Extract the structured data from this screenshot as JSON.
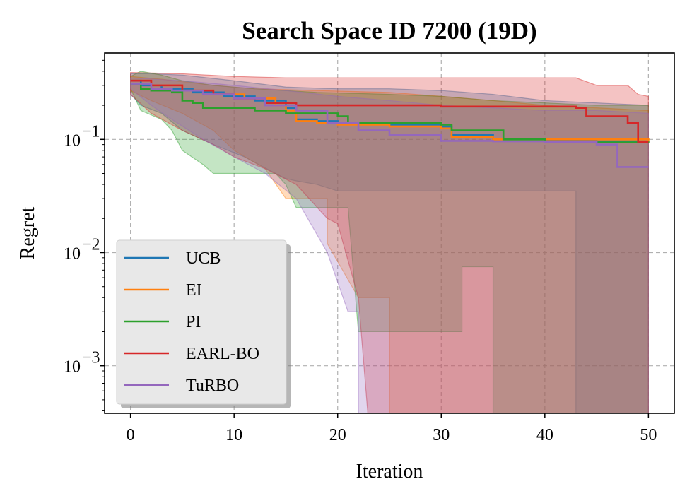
{
  "chart_data": {
    "type": "line",
    "title": "Search Space ID 7200 (19D)",
    "xlabel": "Iteration",
    "ylabel": "Regret",
    "xlim": [
      -2.5,
      52.5
    ],
    "ylim": [
      0.00038,
      0.58
    ],
    "yscale": "log",
    "xticks": [
      0,
      10,
      20,
      30,
      40,
      50
    ],
    "xtick_labels": [
      "0",
      "10",
      "20",
      "30",
      "40",
      "50"
    ],
    "yticks": [
      0.001,
      0.01,
      0.1
    ],
    "ytick_labels": [
      {
        "base": "10",
        "exp": "−3"
      },
      {
        "base": "10",
        "exp": "−2"
      },
      {
        "base": "10",
        "exp": "−1"
      }
    ],
    "grid": true,
    "legend": "lower-left",
    "series": [
      {
        "name": "UCB",
        "color": "#1f77b4",
        "mean": [
          [
            0,
            0.33
          ],
          [
            1,
            0.3
          ],
          [
            3,
            0.28
          ],
          [
            6,
            0.26
          ],
          [
            9,
            0.24
          ],
          [
            12,
            0.22
          ],
          [
            15,
            0.19
          ],
          [
            16,
            0.15
          ],
          [
            18,
            0.145
          ],
          [
            20,
            0.14
          ],
          [
            25,
            0.135
          ],
          [
            30,
            0.13
          ],
          [
            31,
            0.11
          ],
          [
            35,
            0.1
          ],
          [
            40,
            0.098
          ],
          [
            45,
            0.096
          ],
          [
            50,
            0.095
          ]
        ],
        "upper": [
          [
            0,
            0.38
          ],
          [
            2,
            0.38
          ],
          [
            5,
            0.37
          ],
          [
            10,
            0.33
          ],
          [
            15,
            0.29
          ],
          [
            20,
            0.28
          ],
          [
            25,
            0.28
          ],
          [
            30,
            0.27
          ],
          [
            35,
            0.25
          ],
          [
            40,
            0.22
          ],
          [
            45,
            0.21
          ],
          [
            50,
            0.2
          ]
        ],
        "lower": [
          [
            0,
            0.25
          ],
          [
            1,
            0.2
          ],
          [
            3,
            0.17
          ],
          [
            5,
            0.12
          ],
          [
            8,
            0.09
          ],
          [
            11,
            0.07
          ],
          [
            14,
            0.05
          ],
          [
            15,
            0.045
          ],
          [
            16,
            0.043
          ],
          [
            18,
            0.04
          ],
          [
            20,
            0.035
          ],
          [
            22,
            0.035
          ],
          [
            43,
            0.035
          ],
          [
            43,
            0.0003
          ],
          [
            50,
            0.0003
          ]
        ]
      },
      {
        "name": "EI",
        "color": "#ff7f0e",
        "mean": [
          [
            0,
            0.33
          ],
          [
            2,
            0.3
          ],
          [
            5,
            0.27
          ],
          [
            8,
            0.25
          ],
          [
            11,
            0.23
          ],
          [
            14,
            0.2
          ],
          [
            15,
            0.18
          ],
          [
            16,
            0.145
          ],
          [
            18,
            0.14
          ],
          [
            20,
            0.135
          ],
          [
            25,
            0.13
          ],
          [
            30,
            0.125
          ],
          [
            31,
            0.105
          ],
          [
            35,
            0.1
          ],
          [
            40,
            0.1
          ],
          [
            45,
            0.1
          ],
          [
            50,
            0.095
          ]
        ],
        "upper": [
          [
            0,
            0.36
          ],
          [
            3,
            0.34
          ],
          [
            8,
            0.3
          ],
          [
            12,
            0.28
          ],
          [
            18,
            0.27
          ],
          [
            25,
            0.26
          ],
          [
            30,
            0.24
          ],
          [
            35,
            0.22
          ],
          [
            40,
            0.2
          ],
          [
            45,
            0.19
          ],
          [
            50,
            0.18
          ]
        ],
        "lower": [
          [
            0,
            0.27
          ],
          [
            2,
            0.22
          ],
          [
            5,
            0.17
          ],
          [
            8,
            0.12
          ],
          [
            10,
            0.08
          ],
          [
            13,
            0.055
          ],
          [
            15,
            0.03
          ],
          [
            16,
            0.03
          ],
          [
            19,
            0.03
          ],
          [
            19,
            0.012
          ],
          [
            22,
            0.004
          ],
          [
            25,
            0.004
          ],
          [
            25,
            0.0003
          ],
          [
            50,
            0.0003
          ]
        ]
      },
      {
        "name": "PI",
        "color": "#2ca02c",
        "mean": [
          [
            0,
            0.31
          ],
          [
            1,
            0.28
          ],
          [
            2,
            0.27
          ],
          [
            4,
            0.26
          ],
          [
            5,
            0.22
          ],
          [
            6,
            0.21
          ],
          [
            7,
            0.19
          ],
          [
            12,
            0.18
          ],
          [
            15,
            0.17
          ],
          [
            20,
            0.16
          ],
          [
            21,
            0.14
          ],
          [
            25,
            0.14
          ],
          [
            30,
            0.135
          ],
          [
            31,
            0.12
          ],
          [
            35,
            0.12
          ],
          [
            36,
            0.1
          ],
          [
            40,
            0.095
          ],
          [
            45,
            0.094
          ],
          [
            50,
            0.093
          ]
        ],
        "upper": [
          [
            0,
            0.36
          ],
          [
            1,
            0.4
          ],
          [
            3,
            0.37
          ],
          [
            5,
            0.33
          ],
          [
            8,
            0.3
          ],
          [
            12,
            0.28
          ],
          [
            18,
            0.26
          ],
          [
            25,
            0.25
          ],
          [
            30,
            0.24
          ],
          [
            35,
            0.22
          ],
          [
            40,
            0.21
          ],
          [
            45,
            0.2
          ],
          [
            50,
            0.2
          ]
        ],
        "lower": [
          [
            0,
            0.28
          ],
          [
            1,
            0.18
          ],
          [
            3,
            0.15
          ],
          [
            4,
            0.12
          ],
          [
            5,
            0.08
          ],
          [
            7,
            0.06
          ],
          [
            8,
            0.05
          ],
          [
            14,
            0.05
          ],
          [
            15,
            0.04
          ],
          [
            16,
            0.025
          ],
          [
            19,
            0.025
          ],
          [
            21,
            0.025
          ],
          [
            22,
            0.002
          ],
          [
            32,
            0.002
          ],
          [
            32,
            0.0075
          ],
          [
            35,
            0.0075
          ],
          [
            35,
            0.0003
          ],
          [
            50,
            0.0003
          ]
        ]
      },
      {
        "name": "EARL-BO",
        "color": "#d62728",
        "mean": [
          [
            0,
            0.33
          ],
          [
            2,
            0.3
          ],
          [
            5,
            0.27
          ],
          [
            8,
            0.25
          ],
          [
            10,
            0.23
          ],
          [
            13,
            0.21
          ],
          [
            16,
            0.2
          ],
          [
            20,
            0.2
          ],
          [
            30,
            0.195
          ],
          [
            40,
            0.195
          ],
          [
            43,
            0.19
          ],
          [
            44,
            0.16
          ],
          [
            46,
            0.16
          ],
          [
            48,
            0.14
          ],
          [
            49,
            0.095
          ],
          [
            50,
            0.095
          ]
        ],
        "upper": [
          [
            0,
            0.39
          ],
          [
            5,
            0.38
          ],
          [
            10,
            0.36
          ],
          [
            15,
            0.35
          ],
          [
            20,
            0.35
          ],
          [
            30,
            0.35
          ],
          [
            38,
            0.35
          ],
          [
            43,
            0.35
          ],
          [
            45,
            0.3
          ],
          [
            48,
            0.3
          ],
          [
            49,
            0.25
          ],
          [
            50,
            0.24
          ]
        ],
        "lower": [
          [
            0,
            0.25
          ],
          [
            2,
            0.17
          ],
          [
            5,
            0.12
          ],
          [
            8,
            0.09
          ],
          [
            10,
            0.07
          ],
          [
            13,
            0.055
          ],
          [
            16,
            0.04
          ],
          [
            19,
            0.02
          ],
          [
            20,
            0.018
          ],
          [
            22,
            0.004
          ],
          [
            23,
            0.0003
          ],
          [
            50,
            0.0003
          ]
        ]
      },
      {
        "name": "TuRBO",
        "color": "#9467bd",
        "mean": [
          [
            0,
            0.31
          ],
          [
            2,
            0.28
          ],
          [
            4,
            0.27
          ],
          [
            7,
            0.25
          ],
          [
            10,
            0.23
          ],
          [
            13,
            0.2
          ],
          [
            16,
            0.18
          ],
          [
            19,
            0.14
          ],
          [
            22,
            0.12
          ],
          [
            25,
            0.11
          ],
          [
            28,
            0.11
          ],
          [
            30,
            0.097
          ],
          [
            35,
            0.096
          ],
          [
            40,
            0.095
          ],
          [
            45,
            0.09
          ],
          [
            47,
            0.057
          ],
          [
            50,
            0.057
          ]
        ],
        "upper": [
          [
            0,
            0.35
          ],
          [
            5,
            0.33
          ],
          [
            10,
            0.3
          ],
          [
            15,
            0.27
          ],
          [
            20,
            0.24
          ],
          [
            25,
            0.22
          ],
          [
            30,
            0.2
          ],
          [
            35,
            0.19
          ],
          [
            40,
            0.18
          ],
          [
            45,
            0.18
          ],
          [
            50,
            0.17
          ]
        ],
        "lower": [
          [
            0,
            0.28
          ],
          [
            2,
            0.2
          ],
          [
            4,
            0.15
          ],
          [
            7,
            0.1
          ],
          [
            10,
            0.07
          ],
          [
            13,
            0.05
          ],
          [
            16,
            0.03
          ],
          [
            19,
            0.01
          ],
          [
            21,
            0.003
          ],
          [
            22,
            0.003
          ],
          [
            22,
            0.0003
          ],
          [
            50,
            0.0003
          ]
        ]
      }
    ]
  }
}
